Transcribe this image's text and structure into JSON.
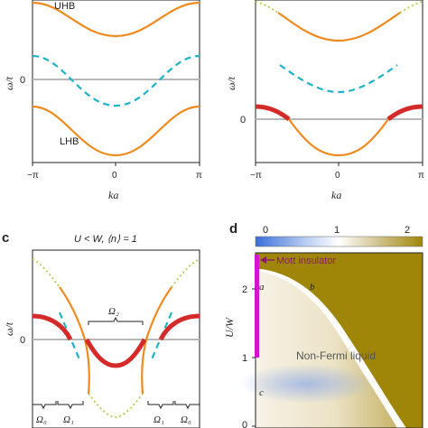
{
  "colors": {
    "orange": "#ee8a1e",
    "cyan": "#1fb3c6",
    "red": "#d42a2a",
    "grey": "#b8b8b8",
    "olive": "#bfcd5a",
    "magenta": "#d414d4",
    "purple": "#8b1a6b",
    "map_dark": "#a08608",
    "map_light": "#f4efe0",
    "map_blue": "#8aa8e8"
  },
  "panel_a": {
    "ylabel": "ω/t",
    "xlabel": "ka",
    "zero": "0",
    "xticks": [
      "−π",
      "0",
      "π"
    ],
    "upper_band": "UHB",
    "lower_band": "LHB"
  },
  "panel_b": {
    "ylabel": "ω/t",
    "xlabel": "ka",
    "zero": "0",
    "xticks": [
      "−π",
      "0",
      "π"
    ]
  },
  "panel_c": {
    "letter": "c",
    "title": "U < W, ⟨n⟩ = 1",
    "ylabel": "ω/t",
    "zero": "0",
    "omega2": "Ω₂",
    "omega1_left": "Ω₁",
    "omega0_left": "Ω₀",
    "omega1_right": "Ω₁",
    "omega0_right": "Ω₀"
  },
  "panel_d": {
    "letter": "d",
    "colorbar_ticks": [
      "0",
      "1",
      "2"
    ],
    "ylabel": "U/W",
    "yticks": [
      "0",
      "1",
      "2"
    ],
    "mott": "Mott insulator",
    "nfl": "Non-Fermi liquid",
    "pt_a": "a",
    "pt_b": "b",
    "pt_c": "c"
  }
}
